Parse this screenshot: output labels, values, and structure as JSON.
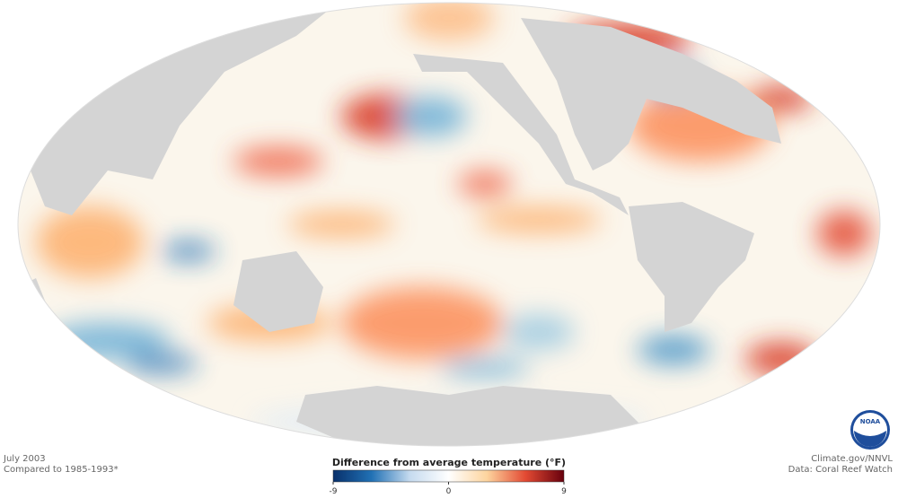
{
  "caption": {
    "date": "July 2003",
    "baseline": "Compared to 1985-1993*"
  },
  "credits": {
    "publisher": "Climate.gov/NNVL",
    "source": "Data: Coral Reef Watch"
  },
  "legend": {
    "title": "Difference from average temperature (°F)",
    "range": [
      -9,
      9
    ],
    "ticks": [
      -9,
      0,
      9
    ],
    "colors": [
      "#08306b",
      "#2171b5",
      "#c6dbef",
      "#ffffff",
      "#fdd49e",
      "#e34a33",
      "#67000d"
    ]
  }
}
